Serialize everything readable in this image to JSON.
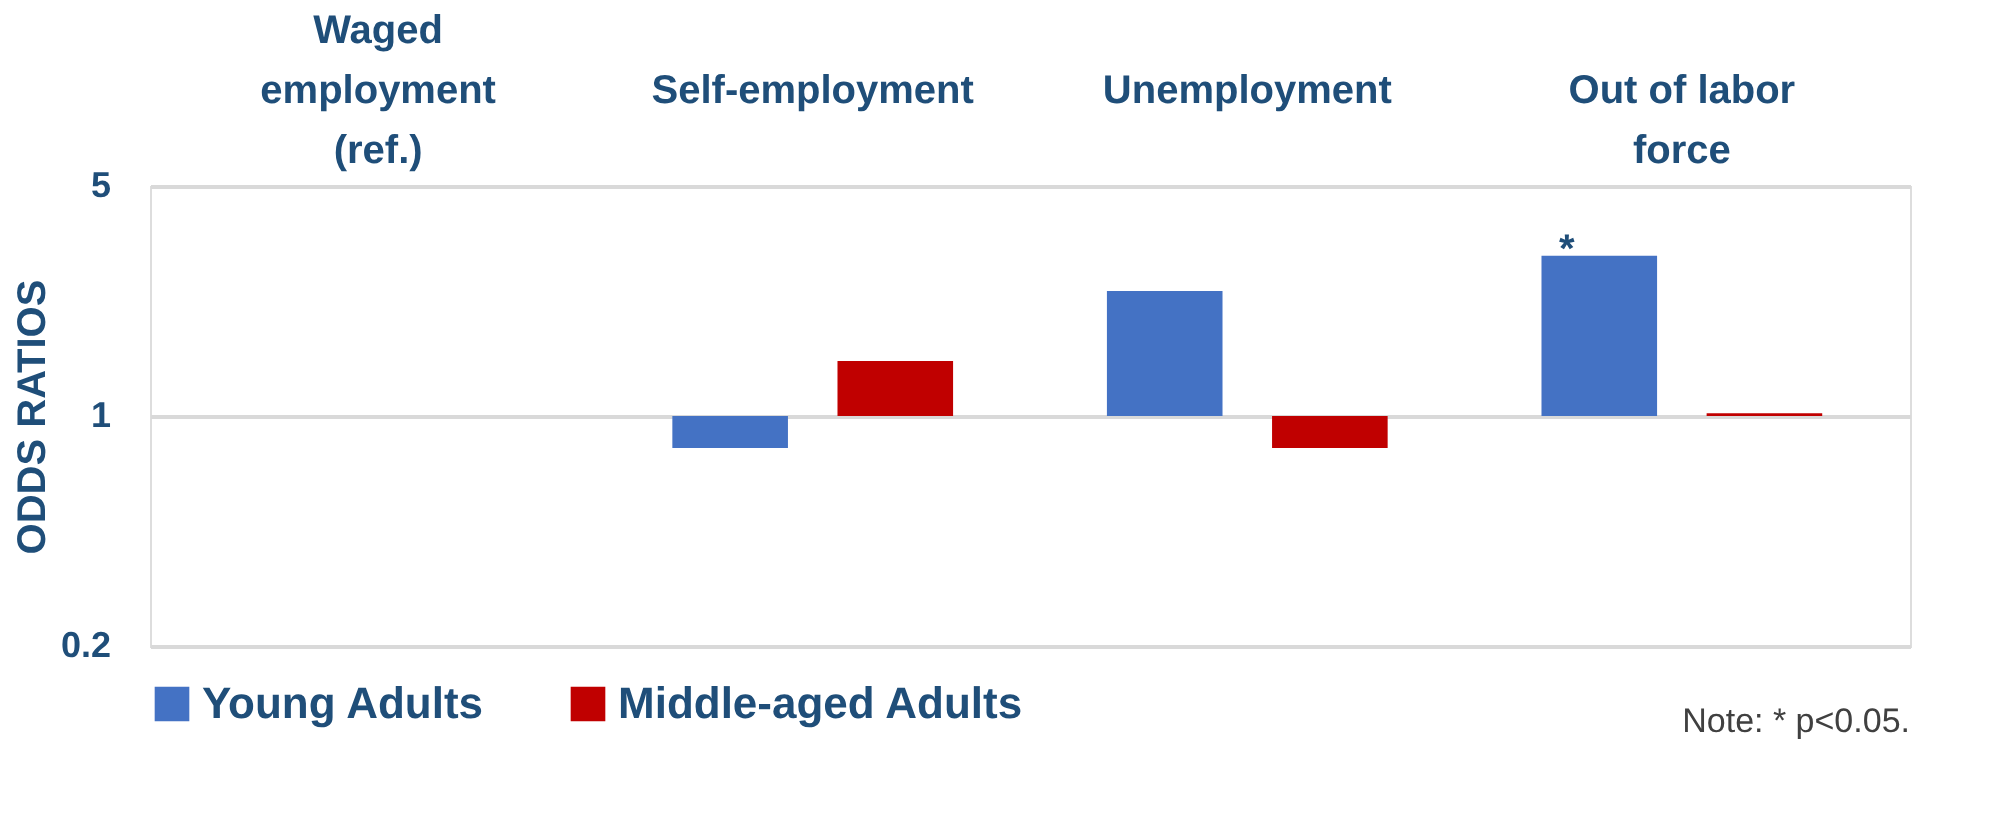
{
  "chart_data": {
    "type": "bar",
    "categories": [
      "Waged employment (ref.)",
      "Self-employment",
      "Unemployment",
      "Out of labor force"
    ],
    "series": [
      {
        "name": "Young Adults",
        "color": "#4472c4",
        "base": [
          null,
          1,
          1,
          1
        ],
        "values": [
          null,
          -0.2,
          1.4,
          2.07
        ]
      },
      {
        "name": "Middle-aged Adults",
        "color": "#c00000",
        "base": [
          null,
          1,
          1,
          1
        ],
        "values": [
          null,
          0.47,
          -0.2,
          0.02
        ]
      }
    ],
    "ylabel": "ODDS RATIOS",
    "log": true,
    "ylim": [
      0.2,
      5
    ],
    "yticks": [
      0.2,
      1,
      5
    ],
    "grid": "y",
    "legend": "bottom",
    "annotations": [
      "*",
      "Note: * p<0.05."
    ]
  }
}
